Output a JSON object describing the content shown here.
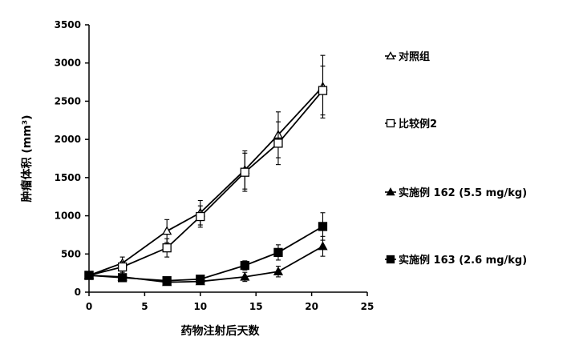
{
  "chart_data": {
    "type": "line",
    "xlabel": "药物注射后天数",
    "ylabel": "肿瘤体积 (mm³)",
    "xlim": [
      0,
      25
    ],
    "ylim": [
      0,
      3500
    ],
    "xticks": [
      0,
      5,
      10,
      15,
      20,
      25
    ],
    "yticks": [
      0,
      500,
      1000,
      1500,
      2000,
      2500,
      3000,
      3500
    ],
    "x": [
      0,
      3,
      7,
      10,
      14,
      17,
      21
    ],
    "grid": false,
    "legend_position": "right",
    "series": [
      {
        "name": "对照组",
        "marker": "open-triangle",
        "values": [
          220,
          380,
          800,
          1040,
          1600,
          2060,
          2690
        ],
        "errors": [
          30,
          80,
          150,
          160,
          250,
          300,
          410
        ]
      },
      {
        "name": "比较例2",
        "marker": "open-square",
        "values": [
          220,
          330,
          580,
          990,
          1570,
          1950,
          2640
        ],
        "errors": [
          30,
          70,
          120,
          140,
          250,
          280,
          320
        ]
      },
      {
        "name": "实施例 162 (5.5 mg/kg)",
        "marker": "filled-triangle",
        "values": [
          220,
          200,
          130,
          140,
          200,
          270,
          600
        ],
        "errors": [
          20,
          30,
          40,
          40,
          60,
          70,
          130
        ]
      },
      {
        "name": "实施例 163 (2.6 mg/kg)",
        "marker": "filled-square",
        "values": [
          220,
          190,
          150,
          170,
          350,
          520,
          860
        ],
        "errors": [
          20,
          30,
          40,
          40,
          60,
          100,
          180
        ]
      }
    ]
  }
}
